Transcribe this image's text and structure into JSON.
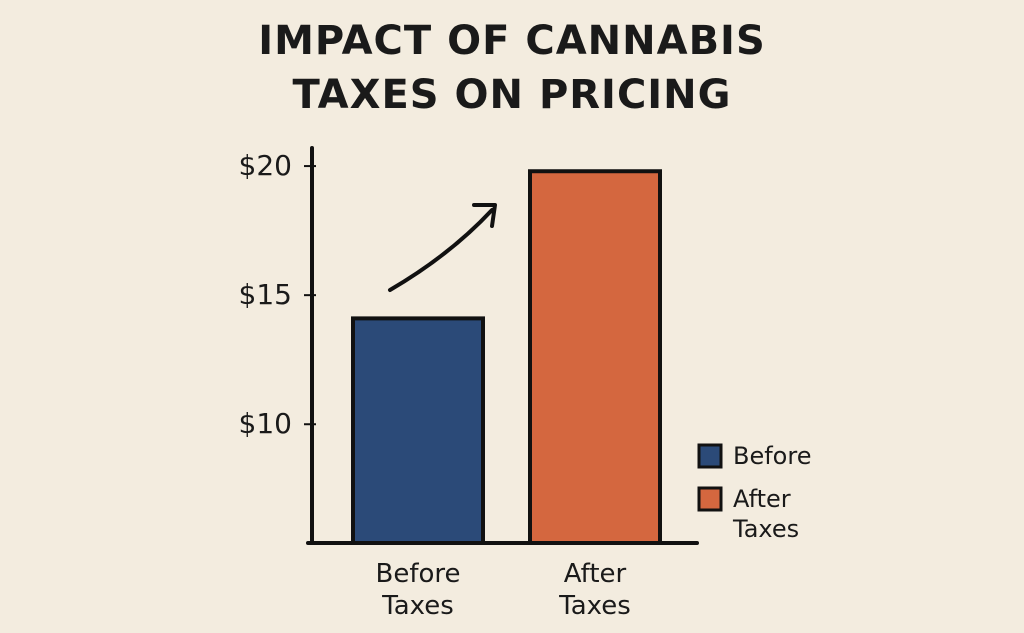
{
  "chart_data": {
    "type": "bar",
    "title": "IMPACT OF CANNABIS TAXES ON PRICING",
    "categories": [
      "Before Taxes",
      "After Taxes"
    ],
    "values": [
      14.1,
      19.8
    ],
    "colors": [
      "#2b4a78",
      "#d4673f"
    ],
    "legend": [
      "Before",
      "After Taxes"
    ],
    "ylim": [
      5.4,
      20.7
    ],
    "yticks": [
      {
        "value": 10,
        "label": "$10"
      },
      {
        "value": 15,
        "label": "$15"
      },
      {
        "value": 20,
        "label": "$20"
      }
    ]
  }
}
